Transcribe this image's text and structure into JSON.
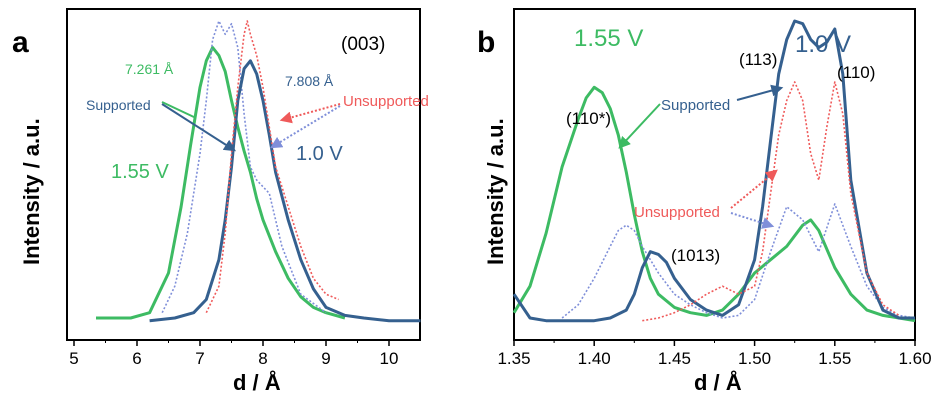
{
  "colors": {
    "green": "#3dbb63",
    "blue": "#35608f",
    "blue_dotted": "#7f8fd9",
    "red_dotted": "#ef5a5a",
    "axis": "#000000"
  },
  "chart_data": [
    {
      "type": "line",
      "panel_letter": "a",
      "xlabel": "d / Å",
      "ylabel": "Intensity / a.u.",
      "xlim": [
        5,
        10.5
      ],
      "ylim": [
        0,
        1.15
      ],
      "xticks": [
        "5",
        "6",
        "7",
        "8",
        "9",
        "10"
      ],
      "peak_label": "(003)",
      "annotations": {
        "green_peak": "7.261 Å",
        "blue_peak": "7.808 Å",
        "supported": "Supported",
        "unsupported": "Unsupported",
        "voltage_green": "1.55 V",
        "voltage_blue": "1.0 V"
      },
      "series": [
        {
          "key": "green_solid",
          "voltage": "1.55 V",
          "color": "#3dbb63",
          "style": "solid",
          "x": [
            5.35,
            5.6,
            5.9,
            6.2,
            6.5,
            6.7,
            6.85,
            7.0,
            7.1,
            7.2,
            7.3,
            7.4,
            7.5,
            7.6,
            7.7,
            7.8,
            7.9,
            8.0,
            8.2,
            8.4,
            8.6,
            8.8,
            9.0,
            9.3
          ],
          "y": [
            0.03,
            0.03,
            0.03,
            0.05,
            0.2,
            0.45,
            0.68,
            0.9,
            1.0,
            1.05,
            1.02,
            0.96,
            0.85,
            0.75,
            0.66,
            0.58,
            0.48,
            0.4,
            0.28,
            0.18,
            0.11,
            0.07,
            0.05,
            0.03
          ]
        },
        {
          "key": "green_dotted",
          "voltage": "1.55 V",
          "color": "#7f8fd9",
          "style": "dotted",
          "x": [
            6.4,
            6.6,
            6.8,
            7.0,
            7.1,
            7.2,
            7.3,
            7.4,
            7.5,
            7.6,
            7.7,
            7.8,
            7.9,
            8.1,
            8.3,
            8.6,
            9.0
          ],
          "y": [
            0.05,
            0.15,
            0.35,
            0.65,
            0.85,
            1.08,
            1.15,
            1.1,
            1.14,
            1.05,
            0.8,
            0.6,
            0.55,
            0.5,
            0.3,
            0.12,
            0.05
          ]
        },
        {
          "key": "blue_solid",
          "voltage": "1.0 V",
          "color": "#35608f",
          "style": "solid",
          "x": [
            6.2,
            6.6,
            6.9,
            7.1,
            7.3,
            7.4,
            7.5,
            7.6,
            7.7,
            7.8,
            7.9,
            8.0,
            8.1,
            8.2,
            8.4,
            8.6,
            8.8,
            9.0,
            9.3,
            9.6,
            10.0,
            10.5
          ],
          "y": [
            0.02,
            0.03,
            0.05,
            0.1,
            0.25,
            0.4,
            0.6,
            0.85,
            0.97,
            1.0,
            0.95,
            0.85,
            0.72,
            0.58,
            0.4,
            0.25,
            0.14,
            0.07,
            0.04,
            0.03,
            0.02,
            0.02
          ]
        },
        {
          "key": "red_dotted",
          "voltage": "1.0 V",
          "color": "#ef5a5a",
          "style": "dotted",
          "x": [
            7.1,
            7.3,
            7.4,
            7.5,
            7.6,
            7.7,
            7.75,
            7.8,
            7.9,
            8.0,
            8.1,
            8.2,
            8.4,
            8.6,
            8.8,
            9.0,
            9.2
          ],
          "y": [
            0.05,
            0.15,
            0.35,
            0.65,
            0.9,
            1.1,
            1.15,
            1.1,
            1.02,
            0.9,
            0.75,
            0.6,
            0.45,
            0.3,
            0.18,
            0.12,
            0.1
          ]
        }
      ]
    },
    {
      "type": "line",
      "panel_letter": "b",
      "xlabel": "d / Å",
      "ylabel": "Intensity / a.u.",
      "xlim": [
        1.35,
        1.6
      ],
      "ylim": [
        0,
        1.15
      ],
      "xticks": [
        "1.35",
        "1.40",
        "1.45",
        "1.50",
        "1.55",
        "1.60"
      ],
      "peak_labels": {
        "p110star": "(110*)",
        "p113": "(113)",
        "p110": "(110)",
        "p1013": "(1013)"
      },
      "annotations": {
        "voltage_green": "1.55 V",
        "voltage_blue": "1.0 V",
        "supported": "Supported",
        "unsupported": "Unsupported"
      },
      "series": [
        {
          "key": "green_solid",
          "voltage": "1.55 V",
          "color": "#3dbb63",
          "style": "solid",
          "x": [
            1.35,
            1.36,
            1.37,
            1.38,
            1.39,
            1.395,
            1.4,
            1.405,
            1.41,
            1.415,
            1.42,
            1.425,
            1.43,
            1.435,
            1.44,
            1.45,
            1.46,
            1.47,
            1.48,
            1.49,
            1.5,
            1.51,
            1.52,
            1.53,
            1.535,
            1.54,
            1.55,
            1.56,
            1.57,
            1.58,
            1.59,
            1.6
          ],
          "y": [
            0.05,
            0.15,
            0.35,
            0.6,
            0.78,
            0.86,
            0.9,
            0.88,
            0.82,
            0.72,
            0.58,
            0.42,
            0.28,
            0.18,
            0.12,
            0.07,
            0.05,
            0.04,
            0.06,
            0.12,
            0.2,
            0.25,
            0.3,
            0.38,
            0.4,
            0.36,
            0.22,
            0.12,
            0.06,
            0.04,
            0.03,
            0.02
          ]
        },
        {
          "key": "green_dotted",
          "voltage": "1.55 V",
          "color": "#7f8fd9",
          "style": "dotted",
          "x": [
            1.38,
            1.39,
            1.4,
            1.41,
            1.415,
            1.42,
            1.425,
            1.43,
            1.44,
            1.45,
            1.46,
            1.47,
            1.48,
            1.49,
            1.5,
            1.51,
            1.52,
            1.53,
            1.54,
            1.55,
            1.56,
            1.57,
            1.58,
            1.59,
            1.6
          ],
          "y": [
            0.03,
            0.08,
            0.18,
            0.3,
            0.36,
            0.38,
            0.36,
            0.3,
            0.2,
            0.12,
            0.08,
            0.05,
            0.03,
            0.04,
            0.1,
            0.28,
            0.45,
            0.4,
            0.28,
            0.46,
            0.3,
            0.15,
            0.07,
            0.04,
            0.03
          ]
        },
        {
          "key": "blue_solid",
          "voltage": "1.0 V",
          "color": "#35608f",
          "style": "solid",
          "x": [
            1.35,
            1.36,
            1.37,
            1.38,
            1.39,
            1.4,
            1.41,
            1.42,
            1.425,
            1.43,
            1.435,
            1.44,
            1.445,
            1.45,
            1.46,
            1.47,
            1.48,
            1.49,
            1.5,
            1.505,
            1.51,
            1.515,
            1.52,
            1.525,
            1.53,
            1.535,
            1.54,
            1.545,
            1.55,
            1.555,
            1.56,
            1.57,
            1.58,
            1.59,
            1.6
          ],
          "y": [
            0.12,
            0.03,
            0.02,
            0.02,
            0.02,
            0.02,
            0.03,
            0.06,
            0.12,
            0.22,
            0.28,
            0.27,
            0.24,
            0.18,
            0.1,
            0.06,
            0.04,
            0.08,
            0.25,
            0.45,
            0.7,
            0.95,
            1.08,
            1.15,
            1.14,
            1.08,
            1.05,
            1.07,
            1.12,
            0.95,
            0.55,
            0.2,
            0.06,
            0.03,
            0.03
          ]
        },
        {
          "key": "red_dotted",
          "voltage": "1.0 V",
          "color": "#ef5a5a",
          "style": "dotted",
          "x": [
            1.43,
            1.44,
            1.45,
            1.46,
            1.47,
            1.48,
            1.49,
            1.5,
            1.505,
            1.51,
            1.515,
            1.52,
            1.525,
            1.53,
            1.535,
            1.54,
            1.545,
            1.55,
            1.555,
            1.56,
            1.57,
            1.58,
            1.59
          ],
          "y": [
            0.02,
            0.03,
            0.05,
            0.08,
            0.12,
            0.15,
            0.12,
            0.15,
            0.28,
            0.5,
            0.72,
            0.85,
            0.92,
            0.85,
            0.65,
            0.55,
            0.75,
            0.92,
            0.8,
            0.5,
            0.2,
            0.08,
            0.04
          ]
        }
      ]
    }
  ]
}
